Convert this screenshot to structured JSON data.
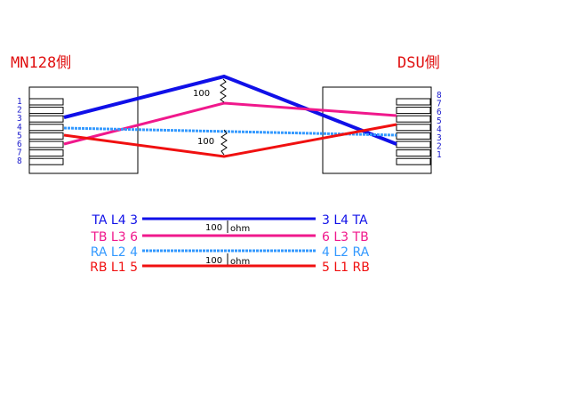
{
  "colors": {
    "blue": "#1010e8",
    "pink": "#f0188c",
    "lightblue": "#3399ff",
    "red": "#f01010"
  },
  "left": {
    "title": "MN128側",
    "pins": [
      "1",
      "2",
      "3",
      "4",
      "5",
      "6",
      "7",
      "8"
    ]
  },
  "right": {
    "title": "DSU側",
    "pins": [
      "8",
      "7",
      "6",
      "5",
      "4",
      "3",
      "2",
      "1"
    ]
  },
  "resistors": {
    "top": "100",
    "bottom": "100"
  },
  "legend": [
    {
      "left_label": "TA L4 3",
      "right_label": "3 L4 TA",
      "color": "blue",
      "resistor": "100",
      "unit": "ohm"
    },
    {
      "left_label": "TB L3 6",
      "right_label": "6 L3 TB",
      "color": "pink",
      "resistor": "",
      "unit": ""
    },
    {
      "left_label": "RA L2 4",
      "right_label": "4 L2 RA",
      "color": "lightblue",
      "resistor": "100",
      "unit": "ohm"
    },
    {
      "left_label": "RB L1 5",
      "right_label": "5 L1 RB",
      "color": "red",
      "resistor": "",
      "unit": ""
    }
  ]
}
